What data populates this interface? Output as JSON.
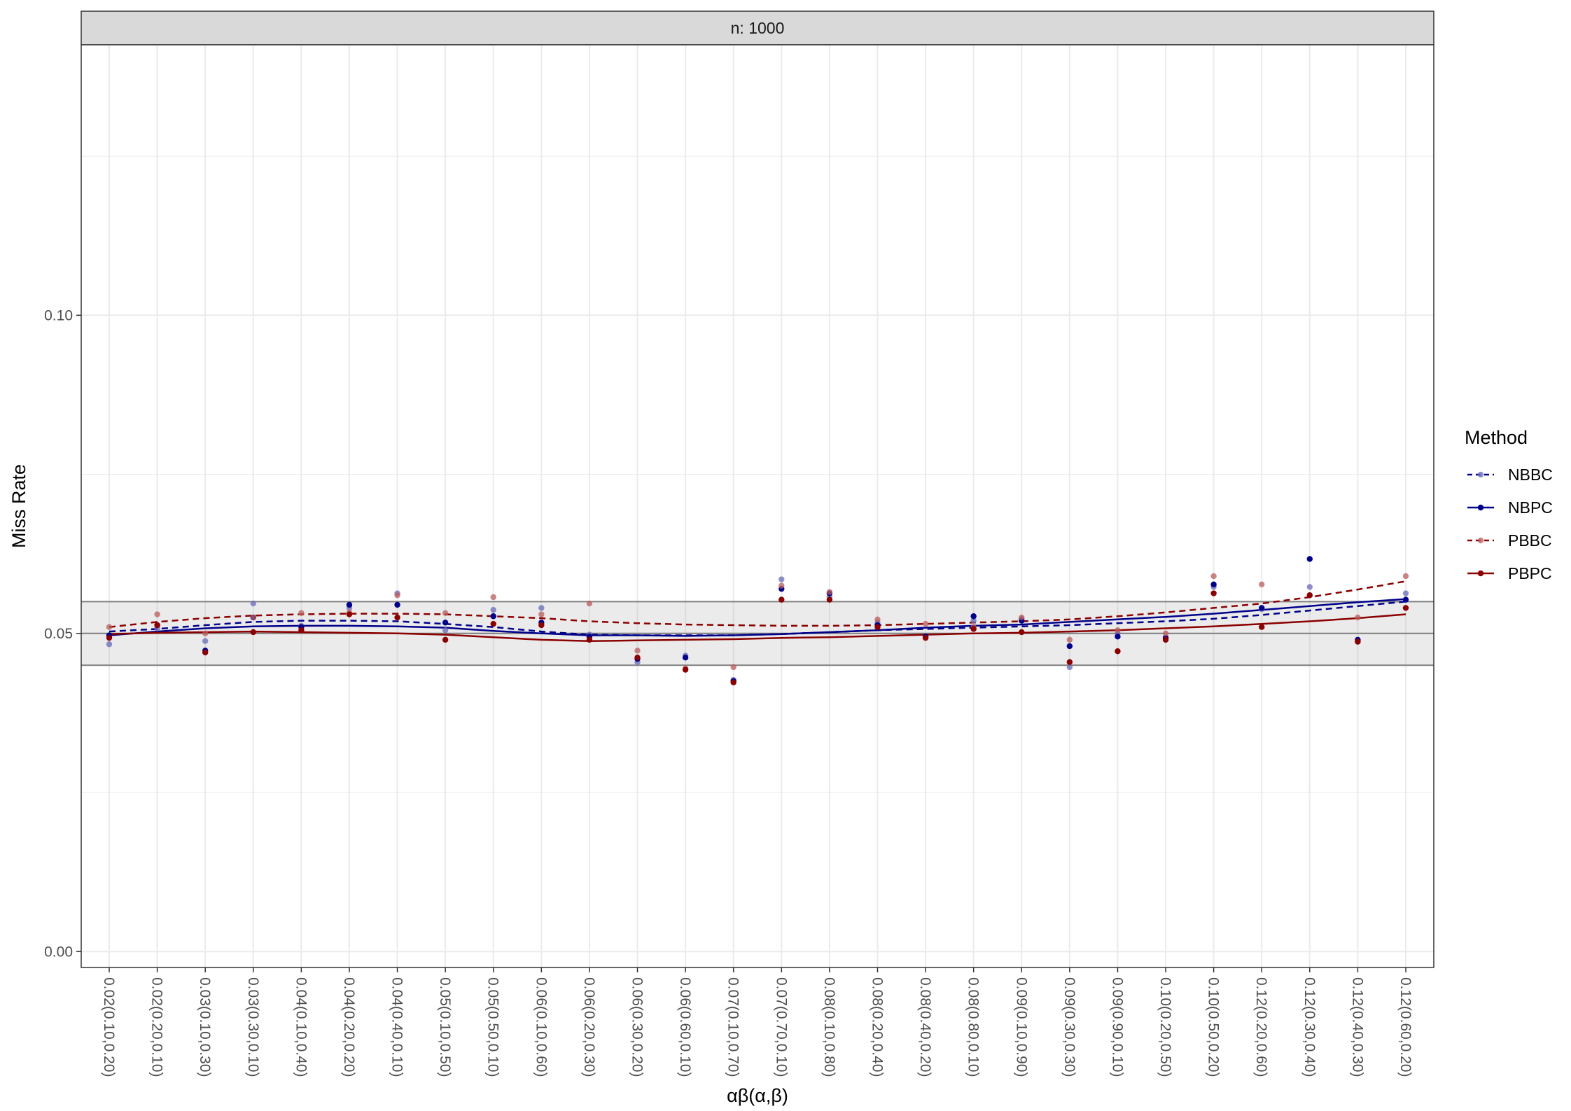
{
  "chart_data": {
    "type": "scatter",
    "facet_label": "n: 1000",
    "xlabel": "αβ(α,β)",
    "ylabel": "Miss Rate",
    "ylim": [
      -0.0025,
      0.1425
    ],
    "yticks": [
      0.0,
      0.05,
      0.1
    ],
    "ytick_labels": [
      "0.00",
      "0.05",
      "0.10"
    ],
    "grid": true,
    "reference_line": 0.05,
    "reference_band": [
      0.045,
      0.055
    ],
    "categories": [
      "0.02(0.10,0.20)",
      "0.02(0.20,0.10)",
      "0.03(0.10,0.30)",
      "0.03(0.30,0.10)",
      "0.04(0.10,0.40)",
      "0.04(0.20,0.20)",
      "0.04(0.40,0.10)",
      "0.05(0.10,0.50)",
      "0.05(0.50,0.10)",
      "0.06(0.10,0.60)",
      "0.06(0.20,0.30)",
      "0.06(0.30,0.20)",
      "0.06(0.60,0.10)",
      "0.07(0.10,0.70)",
      "0.07(0.70,0.10)",
      "0.08(0.10,0.80)",
      "0.08(0.20,0.40)",
      "0.08(0.40,0.20)",
      "0.08(0.80,0.10)",
      "0.09(0.10,0.90)",
      "0.09(0.30,0.30)",
      "0.09(0.90,0.10)",
      "0.10(0.20,0.50)",
      "0.10(0.50,0.20)",
      "0.12(0.20,0.60)",
      "0.12(0.30,0.40)",
      "0.12(0.40,0.30)",
      "0.12(0.60,0.20)"
    ],
    "legend": {
      "title": "Method",
      "position": "right"
    },
    "series": [
      {
        "name": "NBBC",
        "color": "#6a6ab8",
        "dash": "dashed",
        "opacity": 0.75,
        "values": [
          0.0483,
          0.0508,
          0.0488,
          0.0547,
          0.0512,
          0.054,
          0.0563,
          0.0505,
          0.0537,
          0.054,
          0.0498,
          0.0455,
          0.0465,
          0.0427,
          0.0585,
          0.0558,
          0.0517,
          0.0495,
          0.052,
          0.0523,
          0.0447,
          0.05,
          0.0493,
          0.0573,
          0.0538,
          0.0573,
          0.0487,
          0.0563
        ],
        "smooth": [
          0.0503,
          0.0507,
          0.0513,
          0.0518,
          0.052,
          0.052,
          0.0519,
          0.0515,
          0.051,
          0.0503,
          0.0498,
          0.0497,
          0.0497,
          0.0497,
          0.0499,
          0.0502,
          0.0505,
          0.0507,
          0.0509,
          0.0511,
          0.0513,
          0.0516,
          0.0519,
          0.0523,
          0.0529,
          0.0536,
          0.0543,
          0.055
        ]
      },
      {
        "name": "NBPC",
        "color": "#00008b",
        "dash": "solid",
        "opacity": 1,
        "values": [
          0.0497,
          0.0513,
          0.0473,
          0.0525,
          0.051,
          0.0545,
          0.0545,
          0.0517,
          0.0527,
          0.0517,
          0.0495,
          0.046,
          0.0462,
          0.0425,
          0.057,
          0.0563,
          0.0513,
          0.0495,
          0.0527,
          0.052,
          0.048,
          0.0495,
          0.0493,
          0.0577,
          0.054,
          0.0617,
          0.049,
          0.0553
        ],
        "smooth": [
          0.0497,
          0.0503,
          0.0508,
          0.0511,
          0.0512,
          0.0512,
          0.0511,
          0.0509,
          0.0504,
          0.05,
          0.0497,
          0.0497,
          0.0496,
          0.0497,
          0.0499,
          0.0502,
          0.0505,
          0.0509,
          0.0512,
          0.0514,
          0.0518,
          0.0522,
          0.0526,
          0.0531,
          0.0537,
          0.0543,
          0.0549,
          0.0554
        ]
      },
      {
        "name": "PBBC",
        "color": "#b85c5c",
        "dash": "dashed",
        "opacity": 0.75,
        "values": [
          0.051,
          0.053,
          0.05,
          0.0525,
          0.0532,
          0.0533,
          0.056,
          0.0532,
          0.0557,
          0.053,
          0.0547,
          0.0473,
          0.0445,
          0.0447,
          0.0575,
          0.0565,
          0.0522,
          0.0515,
          0.051,
          0.0525,
          0.049,
          0.0505,
          0.05,
          0.059,
          0.0577,
          0.056,
          0.0525,
          0.059
        ],
        "smooth": [
          0.051,
          0.0518,
          0.0524,
          0.0528,
          0.053,
          0.0531,
          0.0531,
          0.053,
          0.0527,
          0.0524,
          0.0519,
          0.0516,
          0.0514,
          0.0513,
          0.0512,
          0.0512,
          0.0513,
          0.0515,
          0.0517,
          0.0519,
          0.0522,
          0.0527,
          0.0533,
          0.054,
          0.0547,
          0.0557,
          0.0569,
          0.0582
        ]
      },
      {
        "name": "PBPC",
        "color": "#8b0000",
        "dash": "solid",
        "opacity": 1,
        "values": [
          0.0493,
          0.0513,
          0.047,
          0.0502,
          0.0505,
          0.053,
          0.0525,
          0.049,
          0.0515,
          0.0513,
          0.049,
          0.0462,
          0.0443,
          0.0423,
          0.0553,
          0.0553,
          0.051,
          0.0493,
          0.0507,
          0.0502,
          0.0455,
          0.0472,
          0.049,
          0.0563,
          0.051,
          0.056,
          0.0487,
          0.054
        ],
        "smooth": [
          0.0499,
          0.0501,
          0.0502,
          0.0503,
          0.0502,
          0.0501,
          0.05,
          0.0498,
          0.0494,
          0.049,
          0.0488,
          0.0489,
          0.049,
          0.0491,
          0.0493,
          0.0494,
          0.0496,
          0.0498,
          0.05,
          0.0501,
          0.0503,
          0.0505,
          0.0508,
          0.0511,
          0.0515,
          0.0519,
          0.0524,
          0.053
        ]
      }
    ]
  }
}
